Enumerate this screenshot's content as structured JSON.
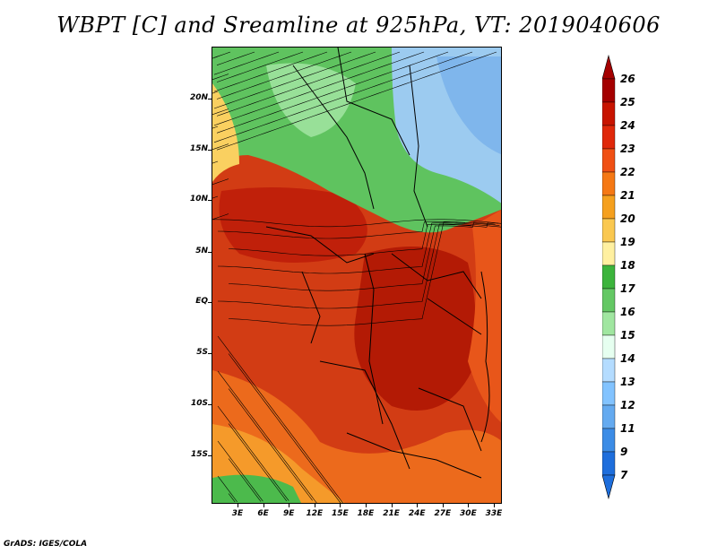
{
  "title": "WBPT [C] and Sreamline at 925hPa, VT: 2019040606",
  "footer": "GrADS: IGES/COLA",
  "map": {
    "lat_labels": [
      "20N",
      "15N",
      "10N",
      "5N",
      "EQ",
      "5S",
      "10S",
      "15S"
    ],
    "lon_labels": [
      "3E",
      "6E",
      "9E",
      "12E",
      "15E",
      "18E",
      "21E",
      "24E",
      "27E",
      "30E",
      "33E"
    ]
  },
  "colorbar": {
    "levels": [
      "26",
      "25",
      "24",
      "23",
      "22",
      "21",
      "20",
      "19",
      "18",
      "17",
      "16",
      "15",
      "14",
      "13",
      "12",
      "11",
      "9",
      "7"
    ],
    "colors": [
      "#a50000",
      "#c81400",
      "#e0280a",
      "#f05014",
      "#f57814",
      "#f5a01e",
      "#fac850",
      "#fff0a0",
      "#3cb43c",
      "#64c864",
      "#a0e6a0",
      "#e6fff0",
      "#b4dcff",
      "#82c3ff",
      "#64aaf0",
      "#3c8ce6",
      "#1e6edc"
    ]
  }
}
